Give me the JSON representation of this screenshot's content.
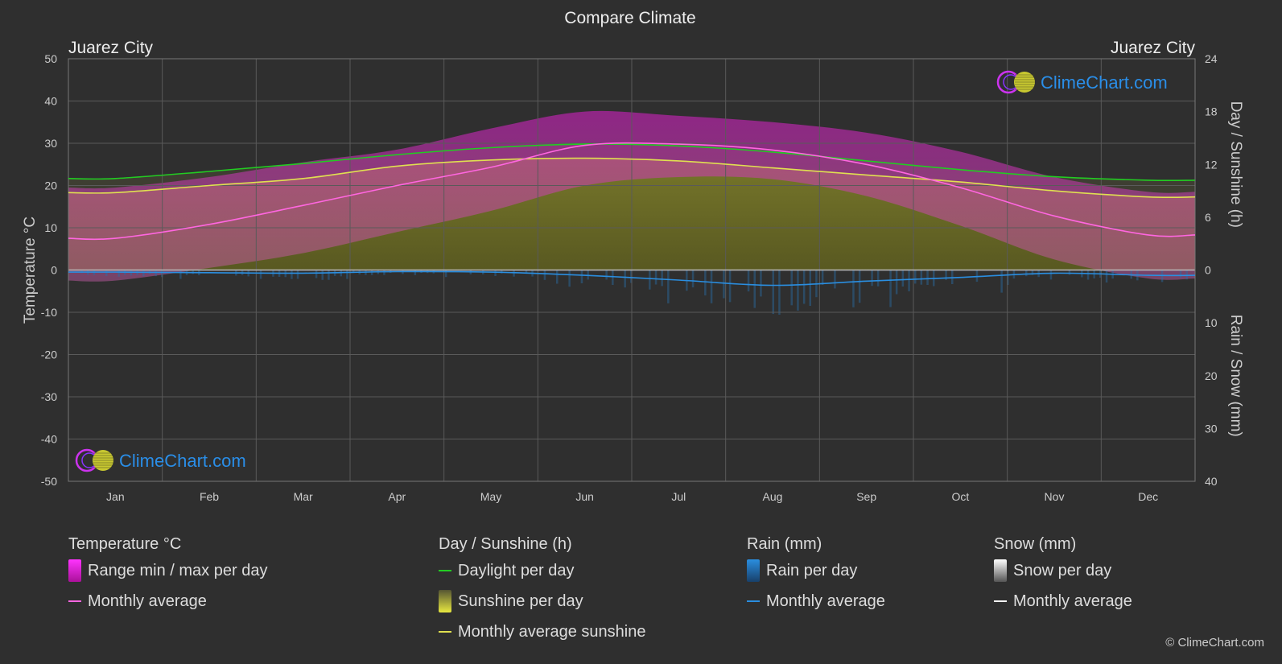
{
  "chart_data": {
    "type": "line",
    "title": "Compare Climate",
    "location_left": "Juarez City",
    "location_right": "Juarez City",
    "ylabel_left": "Temperature °C",
    "ylabel_right_top": "Day / Sunshine (h)",
    "ylabel_right_bottom": "Rain / Snow (mm)",
    "ylim_left": [
      -50,
      50
    ],
    "left_ticks": [
      "50",
      "40",
      "30",
      "20",
      "10",
      "0",
      "-10",
      "-20",
      "-30",
      "-40",
      "-50"
    ],
    "right_ticks_sun": [
      "24",
      "18",
      "12",
      "6",
      "0"
    ],
    "right_ticks_rain": [
      "10",
      "20",
      "30",
      "40"
    ],
    "months": [
      "Jan",
      "Feb",
      "Mar",
      "Apr",
      "May",
      "Jun",
      "Jul",
      "Aug",
      "Sep",
      "Oct",
      "Nov",
      "Dec"
    ],
    "grid": true,
    "series": [
      {
        "name": "Daylight per day",
        "unit": "h",
        "color": "#22cc22",
        "values": [
          10.4,
          11.2,
          12.1,
          13.1,
          13.9,
          14.3,
          14.1,
          13.4,
          12.4,
          11.4,
          10.6,
          10.2
        ]
      },
      {
        "name": "Monthly average sunshine",
        "unit": "h",
        "color": "#e0e050",
        "values": [
          8.8,
          9.6,
          10.4,
          11.8,
          12.5,
          12.7,
          12.4,
          11.6,
          10.8,
          10.0,
          9.0,
          8.3
        ]
      },
      {
        "name": "Monthly average",
        "unit": "°C",
        "color": "#ff66e0",
        "values": [
          7.5,
          10.8,
          15.3,
          20.0,
          24.3,
          29.5,
          29.8,
          28.4,
          25.0,
          19.5,
          12.8,
          8.3
        ]
      },
      {
        "name": "Monthly average (rain)",
        "unit": "mm",
        "color": "#2a8ee0",
        "values": [
          0.4,
          0.5,
          0.6,
          0.3,
          0.4,
          1.0,
          1.9,
          2.9,
          2.1,
          1.4,
          0.6,
          1.0
        ]
      }
    ],
    "temp_range_max": [
      19.5,
      22.0,
      25.5,
      28.5,
      33.5,
      37.5,
      36.5,
      35.0,
      32.5,
      28.0,
      22.0,
      18.5
    ],
    "temp_range_min": [
      -2.5,
      0.5,
      4.0,
      9.0,
      14.0,
      20.0,
      22.0,
      21.5,
      17.5,
      10.5,
      2.5,
      -2.0
    ],
    "sunshine_daily_avg": [
      8.8,
      9.6,
      10.4,
      11.8,
      12.5,
      12.7,
      12.4,
      11.6,
      10.8,
      10.0,
      9.0,
      8.3
    ],
    "legend": {
      "temperature": {
        "title": "Temperature °C",
        "range": "Range min / max per day",
        "avg": "Monthly average"
      },
      "sun": {
        "title": "Day / Sunshine (h)",
        "daylight": "Daylight per day",
        "sunshine": "Sunshine per day",
        "avg": "Monthly average sunshine"
      },
      "rain": {
        "title": "Rain (mm)",
        "per_day": "Rain per day",
        "avg": "Monthly average"
      },
      "snow": {
        "title": "Snow (mm)",
        "per_day": "Snow per day",
        "avg": "Monthly average"
      }
    },
    "colors": {
      "background": "#2f2f2f",
      "grid": "#5a5a5a",
      "daylight": "#22cc22",
      "sunshine": "#e0e050",
      "temp_avg": "#ff66e0",
      "temp_range": "#d020c0",
      "rain": "#2a8ee0",
      "snow": "#ffffff"
    }
  },
  "branding": {
    "logo_text": "ClimeChart.com",
    "copyright": "© ClimeChart.com"
  }
}
